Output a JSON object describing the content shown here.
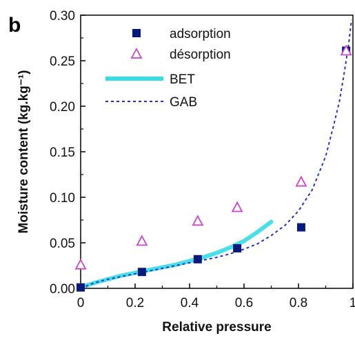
{
  "chart_data": {
    "type": "scatter",
    "panel_label": "b",
    "xlabel": "Relative pressure",
    "ylabel": "Moisture content (kg.kg⁻¹)",
    "xlim": [
      0,
      1.0
    ],
    "ylim": [
      0,
      0.3
    ],
    "x_ticks": [
      0,
      0.2,
      0.4,
      0.6,
      0.8,
      1.0
    ],
    "x_tick_labels": [
      "0",
      "0.2",
      "0.4",
      "0.6",
      "0.8",
      "1"
    ],
    "y_ticks": [
      0,
      0.05,
      0.1,
      0.15,
      0.2,
      0.25,
      0.3
    ],
    "y_tick_labels": [
      "0.00",
      "0.05",
      "0.10",
      "0.15",
      "0.20",
      "0.25",
      "0.30"
    ],
    "grid": false,
    "legend_position": "top-left",
    "series": [
      {
        "name": "adsorption",
        "kind": "marker",
        "marker": "filled-square",
        "color": "#0a1a7a",
        "x": [
          0.0,
          0.225,
          0.43,
          0.575,
          0.81,
          0.975
        ],
        "y": [
          0.001,
          0.018,
          0.032,
          0.044,
          0.067,
          0.261
        ]
      },
      {
        "name": "désorption",
        "kind": "marker",
        "marker": "open-triangle",
        "color": "#cc44cc",
        "x": [
          0.0,
          0.225,
          0.43,
          0.575,
          0.81,
          0.975
        ],
        "y": [
          0.026,
          0.052,
          0.074,
          0.089,
          0.117,
          0.261
        ]
      },
      {
        "name": "BET",
        "kind": "line",
        "style": "solid-thick",
        "color": "#33dde6",
        "x": [
          0.0,
          0.05,
          0.1,
          0.15,
          0.2,
          0.25,
          0.3,
          0.35,
          0.4,
          0.45,
          0.5,
          0.55,
          0.6,
          0.65,
          0.7
        ],
        "y": [
          0.001,
          0.006,
          0.01,
          0.014,
          0.017,
          0.02,
          0.023,
          0.026,
          0.03,
          0.034,
          0.039,
          0.045,
          0.052,
          0.062,
          0.073
        ]
      },
      {
        "name": "GAB",
        "kind": "line",
        "style": "dashed",
        "color": "#2233bb",
        "x": [
          0.0,
          0.05,
          0.1,
          0.15,
          0.2,
          0.25,
          0.3,
          0.35,
          0.4,
          0.45,
          0.5,
          0.55,
          0.6,
          0.65,
          0.7,
          0.75,
          0.8,
          0.85,
          0.9,
          0.93,
          0.95,
          0.97,
          0.985,
          0.995
        ],
        "y": [
          0.0,
          0.006,
          0.01,
          0.013,
          0.016,
          0.019,
          0.022,
          0.025,
          0.028,
          0.031,
          0.034,
          0.038,
          0.043,
          0.049,
          0.058,
          0.069,
          0.085,
          0.108,
          0.145,
          0.18,
          0.205,
          0.24,
          0.27,
          0.295
        ]
      }
    ]
  }
}
